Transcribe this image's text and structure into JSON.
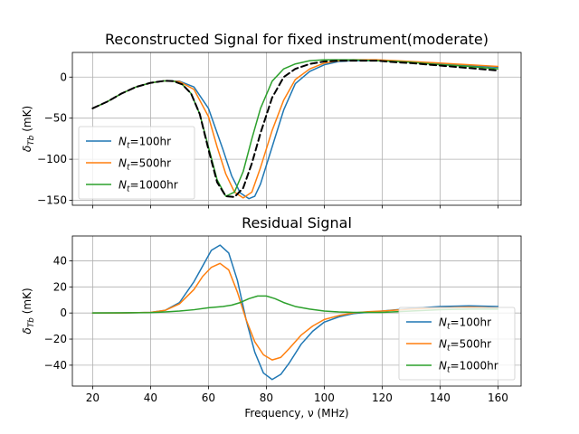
{
  "chart_data": [
    {
      "type": "line",
      "title": "Reconstructed Signal for fixed instrument(moderate)",
      "xlabel": "",
      "ylabel": "δ_Tb (mK)",
      "xlim": [
        13,
        168
      ],
      "ylim": [
        -156,
        30
      ],
      "xticks": [
        20,
        40,
        60,
        80,
        100,
        120,
        140,
        160
      ],
      "yticks": [
        -150,
        -100,
        -50,
        0
      ],
      "show_xtick_labels": false,
      "grid": true,
      "legend_location": "lower left",
      "series": [
        {
          "name": "N_t=100hr",
          "legend_label": {
            "main": "N",
            "sub": "t",
            "rest": "=100hr"
          },
          "color": "#1f77b4",
          "dash": "solid",
          "x": [
            20,
            25,
            30,
            35,
            40,
            45,
            50,
            55,
            60,
            65,
            68,
            71,
            74,
            76,
            78,
            82,
            86,
            90,
            95,
            100,
            105,
            110,
            118,
            125,
            130,
            140,
            150,
            160
          ],
          "y": [
            -38,
            -30,
            -20,
            -12,
            -7,
            -4.5,
            -5,
            -12,
            -38,
            -88,
            -120,
            -141,
            -148,
            -145,
            -130,
            -85,
            -40,
            -8,
            7,
            15,
            19,
            20,
            20,
            19,
            18,
            16,
            14,
            12
          ]
        },
        {
          "name": "N_t=500hr",
          "legend_label": {
            "main": "N",
            "sub": "t",
            "rest": "=500hr"
          },
          "color": "#ff7f0e",
          "dash": "solid",
          "x": [
            20,
            25,
            30,
            35,
            40,
            45,
            50,
            55,
            60,
            63,
            66,
            69,
            72,
            75,
            78,
            82,
            86,
            90,
            95,
            100,
            105,
            110,
            118,
            125,
            130,
            140,
            150,
            160
          ],
          "y": [
            -38,
            -30,
            -20,
            -12,
            -7,
            -4.5,
            -5.5,
            -15,
            -48,
            -85,
            -118,
            -140,
            -147,
            -140,
            -110,
            -65,
            -28,
            -3,
            10,
            17,
            20,
            21,
            21,
            20,
            19,
            17,
            15,
            13
          ]
        },
        {
          "name": "N_t=1000hr",
          "legend_label": {
            "main": "N",
            "sub": "t",
            "rest": "=1000hr"
          },
          "color": "#2ca02c",
          "dash": "solid",
          "x": [
            20,
            25,
            30,
            35,
            40,
            45,
            48,
            51,
            54,
            57,
            60,
            63,
            66,
            69,
            72,
            75,
            78,
            82,
            86,
            90,
            95,
            100,
            105,
            110,
            118,
            125,
            130,
            140,
            150,
            160
          ],
          "y": [
            -38,
            -30,
            -20,
            -12,
            -7,
            -4.5,
            -5,
            -9,
            -20,
            -45,
            -85,
            -125,
            -145,
            -140,
            -115,
            -75,
            -38,
            -5,
            10,
            16,
            20,
            21,
            21,
            21,
            20,
            19,
            18,
            15,
            13,
            10
          ]
        },
        {
          "name": "",
          "color": "#000000",
          "dash": "dashed",
          "x": [
            20,
            25,
            30,
            35,
            40,
            45,
            48,
            51,
            54,
            57,
            60,
            63,
            66,
            69,
            72,
            75,
            78,
            82,
            86,
            90,
            95,
            100,
            105,
            110,
            118,
            125,
            130,
            140,
            150,
            160
          ],
          "y": [
            -38,
            -30,
            -20,
            -12,
            -7,
            -4.5,
            -5,
            -9,
            -20,
            -45,
            -88,
            -128,
            -145,
            -146,
            -135,
            -105,
            -68,
            -25,
            0,
            10,
            16,
            19,
            20,
            20,
            20,
            18,
            17,
            14,
            11,
            8
          ]
        }
      ]
    },
    {
      "type": "line",
      "title": "Residual Signal",
      "xlabel": "Frequency, ν (MHz)",
      "ylabel": "δ_Tb (mK)",
      "xlim": [
        13,
        168
      ],
      "ylim": [
        -56,
        59
      ],
      "xticks": [
        20,
        40,
        60,
        80,
        100,
        120,
        140,
        160
      ],
      "yticks": [
        -40,
        -20,
        0,
        20,
        40
      ],
      "show_xtick_labels": true,
      "grid": true,
      "legend_location": "lower right",
      "series": [
        {
          "name": "N_t=100hr",
          "legend_label": {
            "main": "N",
            "sub": "t",
            "rest": "=100hr"
          },
          "color": "#1f77b4",
          "dash": "solid",
          "x": [
            20,
            30,
            40,
            45,
            50,
            55,
            58,
            61,
            64,
            67,
            70,
            73,
            76,
            79,
            82,
            85,
            88,
            92,
            96,
            100,
            105,
            110,
            115,
            120,
            130,
            140,
            150,
            160
          ],
          "y": [
            0,
            0,
            0.5,
            2,
            8,
            24,
            36,
            48,
            52,
            46,
            25,
            -5,
            -30,
            -46,
            -51,
            -47,
            -38,
            -24,
            -14,
            -7,
            -3,
            -0.5,
            0.5,
            1.5,
            3.5,
            5,
            5.5,
            5
          ]
        },
        {
          "name": "N_t=500hr",
          "legend_label": {
            "main": "N",
            "sub": "t",
            "rest": "=500hr"
          },
          "color": "#ff7f0e",
          "dash": "solid",
          "x": [
            20,
            30,
            40,
            45,
            50,
            55,
            58,
            61,
            64,
            67,
            70,
            73,
            76,
            79,
            82,
            85,
            88,
            92,
            96,
            100,
            105,
            110,
            115,
            120,
            130,
            140,
            150,
            160
          ],
          "y": [
            0,
            0,
            0.5,
            2,
            7,
            18,
            28,
            35,
            38,
            33,
            16,
            -5,
            -22,
            -32,
            -36,
            -34,
            -27,
            -17,
            -10,
            -5,
            -2,
            0,
            1,
            1.5,
            3,
            4,
            4.5,
            4
          ]
        },
        {
          "name": "N_t=1000hr",
          "legend_label": {
            "main": "N",
            "sub": "t",
            "rest": "=1000hr"
          },
          "color": "#2ca02c",
          "dash": "solid",
          "x": [
            20,
            40,
            45,
            50,
            55,
            60,
            65,
            68,
            71,
            74,
            77,
            80,
            83,
            86,
            90,
            95,
            100,
            105,
            110,
            120,
            130,
            140,
            150,
            160
          ],
          "y": [
            0,
            0.3,
            0.8,
            1.5,
            2.5,
            4,
            5,
            6,
            8,
            11,
            13,
            13,
            11,
            8,
            5,
            3,
            1.5,
            0.8,
            0.5,
            0.5,
            1.5,
            2.5,
            3,
            3
          ]
        }
      ]
    }
  ]
}
